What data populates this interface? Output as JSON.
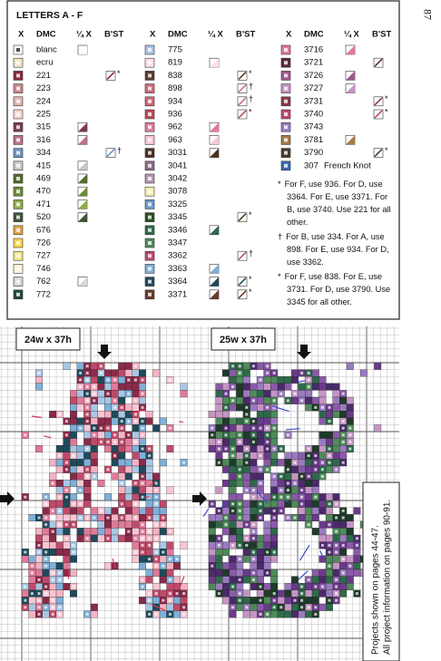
{
  "page_number": "87",
  "key": {
    "title": "LETTERS A - F",
    "headers": [
      "X",
      "DMC",
      "¼ X",
      "B'ST"
    ],
    "columns": [
      [
        {
          "dmc": "blanc",
          "color": "#ffffff",
          "quarter": true
        },
        {
          "dmc": "ecru",
          "color": "#f4e6c8"
        },
        {
          "dmc": "221",
          "color": "#8c2a3c",
          "backstitch": true,
          "mark": "*"
        },
        {
          "dmc": "223",
          "color": "#c98a8f"
        },
        {
          "dmc": "224",
          "color": "#e6b3ae"
        },
        {
          "dmc": "225",
          "color": "#f6d8d3"
        },
        {
          "dmc": "315",
          "color": "#7b3a52",
          "quarter": true
        },
        {
          "dmc": "316",
          "color": "#b7728c",
          "quarter": true
        },
        {
          "dmc": "334",
          "color": "#6d93bd",
          "backstitch": true,
          "mark": "†"
        },
        {
          "dmc": "415",
          "color": "#c8c8c8",
          "quarter": true
        },
        {
          "dmc": "469",
          "color": "#4f6e2a",
          "quarter": true
        },
        {
          "dmc": "470",
          "color": "#6b8c34",
          "quarter": true
        },
        {
          "dmc": "471",
          "color": "#8ead4a",
          "quarter": true
        },
        {
          "dmc": "520",
          "color": "#3e5636",
          "quarter": true
        },
        {
          "dmc": "676",
          "color": "#e2a24a"
        },
        {
          "dmc": "726",
          "color": "#f7d64a"
        },
        {
          "dmc": "727",
          "color": "#f9e68a"
        },
        {
          "dmc": "746",
          "color": "#fbf6dc"
        },
        {
          "dmc": "762",
          "color": "#d8d8d8",
          "quarter": true
        },
        {
          "dmc": "772",
          "color": "#1f4a44"
        }
      ],
      [
        {
          "dmc": "775",
          "color": "#a9c6e4"
        },
        {
          "dmc": "819",
          "color": "#fbe0e6",
          "quarter": true
        },
        {
          "dmc": "838",
          "color": "#5a3c2c",
          "backstitch": true,
          "mark": "*"
        },
        {
          "dmc": "898",
          "color": "#d06a7a",
          "backstitch": true,
          "mark": "†"
        },
        {
          "dmc": "934",
          "color": "#d06a7a",
          "backstitch": true,
          "mark": "†"
        },
        {
          "dmc": "936",
          "color": "#c04a5a",
          "backstitch": true,
          "mark": "*"
        },
        {
          "dmc": "962",
          "color": "#e07b98",
          "quarter": true
        },
        {
          "dmc": "963",
          "color": "#f9c6d4",
          "quarter": true
        },
        {
          "dmc": "3031",
          "color": "#4a3222",
          "quarter": true
        },
        {
          "dmc": "3041",
          "color": "#8b6b87"
        },
        {
          "dmc": "3042",
          "color": "#b497b2"
        },
        {
          "dmc": "3078",
          "color": "#fbefaa"
        },
        {
          "dmc": "3325",
          "color": "#6a9ad0"
        },
        {
          "dmc": "3345",
          "color": "#2f4f1e",
          "backstitch": true,
          "mark": "*"
        },
        {
          "dmc": "3346",
          "color": "#2e6a4a",
          "quarter": true
        },
        {
          "dmc": "3347",
          "color": "#4f8a5a"
        },
        {
          "dmc": "3362",
          "color": "#c04a6a",
          "backstitch": true,
          "mark": "†"
        },
        {
          "dmc": "3363",
          "color": "#7fb0d8",
          "quarter": true
        },
        {
          "dmc": "3364",
          "color": "#1f4a5a",
          "quarter": true,
          "backstitch": true,
          "mark": "*"
        },
        {
          "dmc": "3371",
          "color": "#6a3a2a",
          "quarter": true,
          "backstitch": true,
          "mark": "*"
        }
      ],
      [
        {
          "dmc": "3716",
          "color": "#e07a9a",
          "quarter": true
        },
        {
          "dmc": "3721",
          "color": "#5a2a3a",
          "backstitch": true
        },
        {
          "dmc": "3726",
          "color": "#a05a8a",
          "quarter": true
        },
        {
          "dmc": "3727",
          "color": "#c695c4",
          "quarter": true
        },
        {
          "dmc": "3731",
          "color": "#8a3a4a",
          "backstitch": true,
          "mark": "*"
        },
        {
          "dmc": "3740",
          "color": "#c04a6a",
          "backstitch": true,
          "mark": "*"
        },
        {
          "dmc": "3743",
          "color": "#9a7ac0"
        },
        {
          "dmc": "3781",
          "color": "#a87a48",
          "quarter": true
        },
        {
          "dmc": "3790",
          "color": "#4a3a2a",
          "backstitch": true,
          "mark": "*"
        },
        {
          "dmc": "307",
          "color": "#3a6ab0",
          "label": "French Knot"
        }
      ]
    ],
    "notes": [
      {
        "mark": "*",
        "text": "For F, use 936. For D, use 3364. For E, use 3371. For B, use 3740. Use 221 for all other."
      },
      {
        "mark": "†",
        "text": "For B, use 334. For A, use 898. For E, use 934. For D, use 3362."
      },
      {
        "mark": "*",
        "text": "For F, use 838. For E, use 3731. For D, use 3790. Use 3345 for all other."
      }
    ]
  },
  "charts": [
    {
      "size": "24w x 37h"
    },
    {
      "size": "25w x 37h"
    }
  ],
  "side_note": [
    "Projects shown on pages 44-47.",
    "All project information on pages 90-91."
  ]
}
